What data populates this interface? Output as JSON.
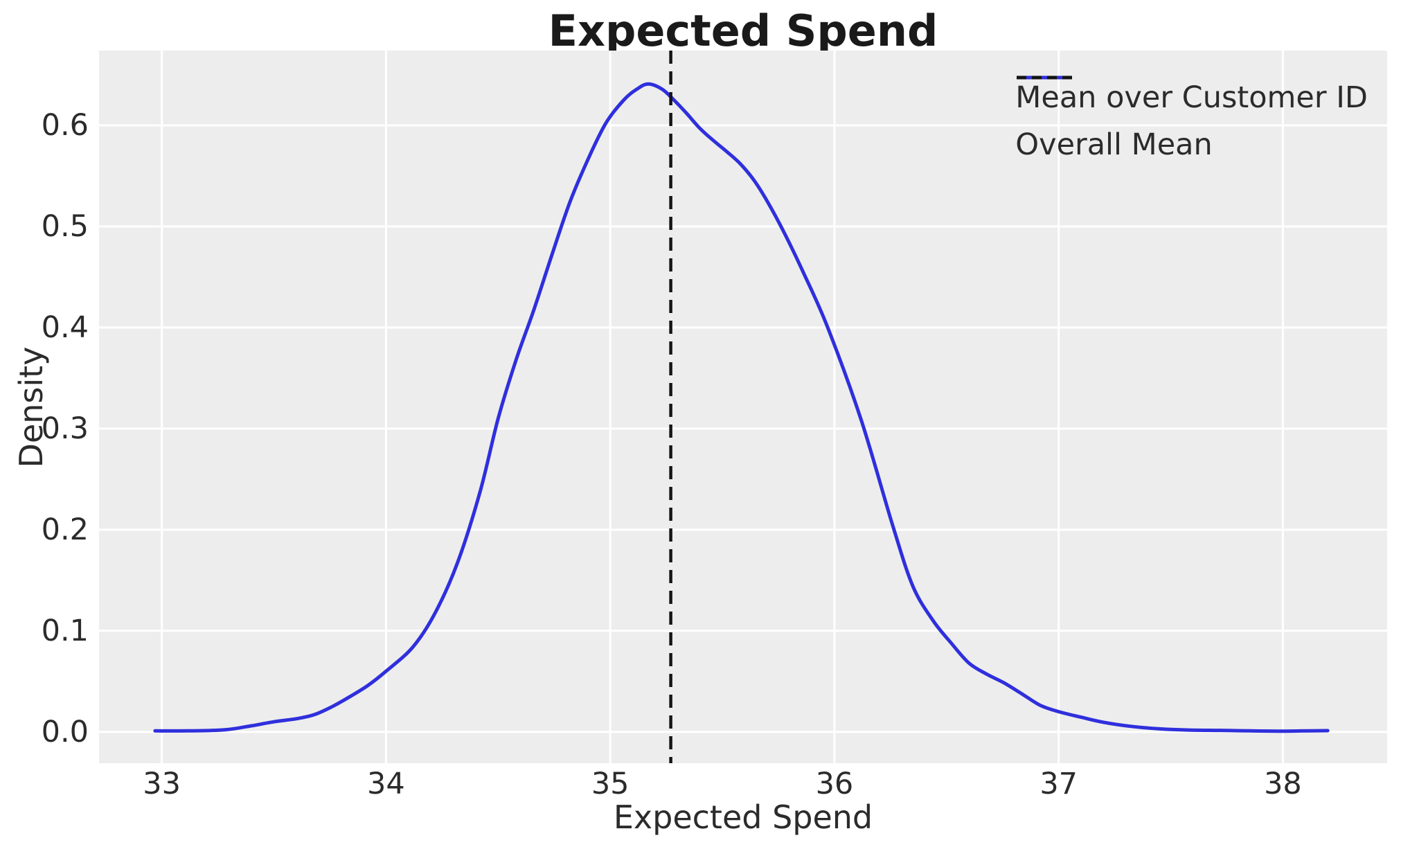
{
  "title": "Expected Spend",
  "x_axis": {
    "label": "Expected Spend",
    "tick_labels": [
      "33",
      "34",
      "35",
      "36",
      "37",
      "38"
    ],
    "tick_values": [
      33,
      34,
      35,
      36,
      37,
      38
    ],
    "range": [
      32.72,
      38.465
    ]
  },
  "y_axis": {
    "label": "Density",
    "tick_labels": [
      "0.0",
      "0.1",
      "0.2",
      "0.3",
      "0.4",
      "0.5",
      "0.6"
    ],
    "tick_values": [
      0.0,
      0.1,
      0.2,
      0.3,
      0.4,
      0.5,
      0.6
    ],
    "range": [
      -0.031,
      0.674
    ]
  },
  "legend": {
    "items": [
      {
        "label": "Mean over Customer ID",
        "style": "solid",
        "color": "#2f2fdd"
      },
      {
        "label": "Overall Mean",
        "style": "dashed",
        "color": "#141414"
      }
    ]
  },
  "colors": {
    "plot_background": "#ededed",
    "gridline": "#ffffff",
    "curve": "#2f2fdd",
    "vline": "#141414",
    "text": "#2b2b2b",
    "title_text": "#1a1a1a"
  },
  "chart_data": {
    "type": "line",
    "title": "Expected Spend",
    "xlabel": "Expected Spend",
    "ylabel": "Density",
    "xlim": [
      32.72,
      38.465
    ],
    "ylim": [
      -0.031,
      0.674
    ],
    "grid": true,
    "legend_position": "upper right",
    "series": [
      {
        "name": "Mean over Customer ID",
        "x": [
          32.97,
          33.12,
          33.28,
          33.4,
          33.5,
          33.6,
          33.68,
          33.76,
          33.84,
          33.92,
          34.0,
          34.12,
          34.22,
          34.32,
          34.42,
          34.5,
          34.58,
          34.66,
          34.74,
          34.82,
          34.9,
          34.98,
          35.06,
          35.12,
          35.17,
          35.23,
          35.28,
          35.34,
          35.4,
          35.46,
          35.52,
          35.58,
          35.64,
          35.7,
          35.78,
          35.86,
          35.97,
          36.12,
          36.26,
          36.35,
          36.44,
          36.52,
          36.6,
          36.68,
          36.76,
          36.84,
          36.92,
          37.0,
          37.1,
          37.2,
          37.32,
          37.45,
          37.58,
          37.72,
          37.85,
          37.98,
          38.08,
          38.2
        ],
        "y": [
          0.001,
          0.001,
          0.002,
          0.006,
          0.01,
          0.013,
          0.017,
          0.025,
          0.035,
          0.046,
          0.06,
          0.084,
          0.118,
          0.168,
          0.238,
          0.31,
          0.368,
          0.418,
          0.472,
          0.524,
          0.566,
          0.602,
          0.625,
          0.636,
          0.641,
          0.636,
          0.626,
          0.612,
          0.597,
          0.585,
          0.574,
          0.562,
          0.546,
          0.525,
          0.492,
          0.455,
          0.4,
          0.308,
          0.204,
          0.144,
          0.11,
          0.088,
          0.068,
          0.057,
          0.048,
          0.037,
          0.026,
          0.02,
          0.0145,
          0.0095,
          0.0055,
          0.003,
          0.0018,
          0.0015,
          0.001,
          0.0007,
          0.0009,
          0.0012
        ]
      }
    ],
    "vline": {
      "name": "Overall Mean",
      "x": 35.27,
      "style": "dashed"
    }
  }
}
